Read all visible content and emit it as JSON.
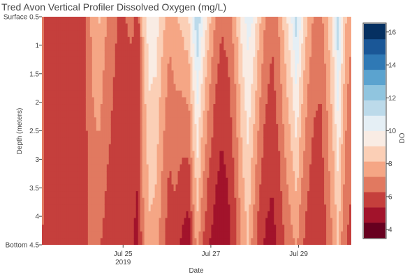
{
  "chart_data": {
    "type": "heatmap",
    "title": "Tred Avon Vertical Profiler Dissolved Oxygen (mg/L)",
    "xlabel": "Date",
    "ylabel": "Depth (meters)",
    "x_ticks": [
      {
        "label": "Jul 25",
        "sublabel": "2019",
        "day": 25
      },
      {
        "label": "Jul 27",
        "sublabel": "",
        "day": 27
      },
      {
        "label": "Jul 29",
        "sublabel": "",
        "day": 29
      }
    ],
    "x_range_days": [
      23.15,
      30.2
    ],
    "y_range": [
      0.5,
      4.5
    ],
    "y_ticks": [
      {
        "label": "Surface 0.5",
        "value": 0.5
      },
      {
        "label": "1",
        "value": 1
      },
      {
        "label": "1.5",
        "value": 1.5
      },
      {
        "label": "2",
        "value": 2
      },
      {
        "label": "2.5",
        "value": 2.5
      },
      {
        "label": "3",
        "value": 3
      },
      {
        "label": "3.5",
        "value": 3.5
      },
      {
        "label": "4",
        "value": 4
      },
      {
        "label": "Bottom 4.5",
        "value": 4.5
      }
    ],
    "colorbar": {
      "title": "DO",
      "range": [
        3.5,
        16.5
      ],
      "ticks": [
        4,
        6,
        8,
        10,
        12,
        14,
        16
      ],
      "colors": [
        "#67001f",
        "#a2132b",
        "#c53f3c",
        "#e17960",
        "#f5a685",
        "#fbcfb6",
        "#f9ece4",
        "#e5eff5",
        "#bcdaea",
        "#90c5df",
        "#5ba3cf",
        "#2f79b5",
        "#1a5797",
        "#053061"
      ]
    },
    "surface_profile": [
      [
        23.15,
        6.6
      ],
      [
        23.3,
        5.7
      ],
      [
        23.75,
        5.8
      ],
      [
        24.0,
        5.9
      ],
      [
        24.15,
        6.3
      ],
      [
        24.3,
        7.6
      ],
      [
        24.45,
        8.3
      ],
      [
        24.6,
        7.4
      ],
      [
        24.75,
        6.8
      ],
      [
        24.9,
        6.2
      ],
      [
        25.05,
        6.3
      ],
      [
        25.2,
        6.5
      ],
      [
        25.35,
        6.0
      ],
      [
        25.45,
        8.2
      ],
      [
        25.6,
        9.8
      ],
      [
        25.75,
        9.7
      ],
      [
        25.9,
        8.5
      ],
      [
        26.05,
        7.6
      ],
      [
        26.2,
        8.0
      ],
      [
        26.35,
        8.6
      ],
      [
        26.5,
        9.2
      ],
      [
        26.6,
        10.6
      ],
      [
        26.7,
        11.9
      ],
      [
        26.8,
        10.4
      ],
      [
        26.95,
        8.6
      ],
      [
        27.1,
        7.2
      ],
      [
        27.25,
        6.5
      ],
      [
        27.4,
        6.8
      ],
      [
        27.55,
        7.8
      ],
      [
        27.7,
        9.4
      ],
      [
        27.85,
        10.5
      ],
      [
        27.95,
        10.1
      ],
      [
        28.1,
        8.5
      ],
      [
        28.25,
        7.2
      ],
      [
        28.4,
        6.6
      ],
      [
        28.55,
        7.4
      ],
      [
        28.7,
        8.8
      ],
      [
        28.85,
        10.2
      ],
      [
        28.95,
        11.6
      ],
      [
        29.05,
        10.0
      ],
      [
        29.2,
        8.1
      ],
      [
        29.35,
        7.1
      ],
      [
        29.5,
        6.9
      ],
      [
        29.65,
        8.0
      ],
      [
        29.8,
        9.6
      ],
      [
        29.9,
        11.8
      ],
      [
        30.0,
        9.4
      ],
      [
        30.1,
        8.0
      ],
      [
        30.2,
        7.4
      ]
    ],
    "bottom_profile": [
      [
        23.15,
        6.4
      ],
      [
        23.3,
        5.6
      ],
      [
        23.75,
        5.7
      ],
      [
        24.0,
        5.8
      ],
      [
        24.15,
        6.0
      ],
      [
        24.3,
        6.6
      ],
      [
        24.45,
        6.4
      ],
      [
        24.6,
        6.0
      ],
      [
        24.75,
        5.7
      ],
      [
        24.9,
        5.4
      ],
      [
        25.05,
        5.6
      ],
      [
        25.2,
        5.4
      ],
      [
        25.35,
        5.1
      ],
      [
        25.45,
        6.9
      ],
      [
        25.6,
        7.9
      ],
      [
        25.75,
        7.7
      ],
      [
        25.9,
        6.6
      ],
      [
        26.05,
        5.7
      ],
      [
        26.2,
        5.9
      ],
      [
        26.35,
        5.1
      ],
      [
        26.5,
        4.7
      ],
      [
        26.6,
        6.6
      ],
      [
        26.7,
        7.6
      ],
      [
        26.8,
        6.4
      ],
      [
        26.95,
        5.4
      ],
      [
        27.1,
        4.9
      ],
      [
        27.25,
        4.6
      ],
      [
        27.4,
        5.0
      ],
      [
        27.55,
        5.9
      ],
      [
        27.7,
        7.3
      ],
      [
        27.85,
        8.2
      ],
      [
        27.95,
        7.0
      ],
      [
        28.1,
        5.8
      ],
      [
        28.25,
        5.2
      ],
      [
        28.4,
        5.0
      ],
      [
        28.55,
        5.6
      ],
      [
        28.7,
        6.4
      ],
      [
        28.85,
        7.0
      ],
      [
        28.95,
        7.4
      ],
      [
        29.05,
        6.5
      ],
      [
        29.2,
        5.9
      ],
      [
        29.35,
        5.5
      ],
      [
        29.5,
        5.4
      ],
      [
        29.65,
        6.3
      ],
      [
        29.8,
        7.4
      ],
      [
        29.9,
        8.2
      ],
      [
        30.0,
        6.9
      ],
      [
        30.1,
        6.2
      ],
      [
        30.2,
        6.0
      ]
    ]
  }
}
